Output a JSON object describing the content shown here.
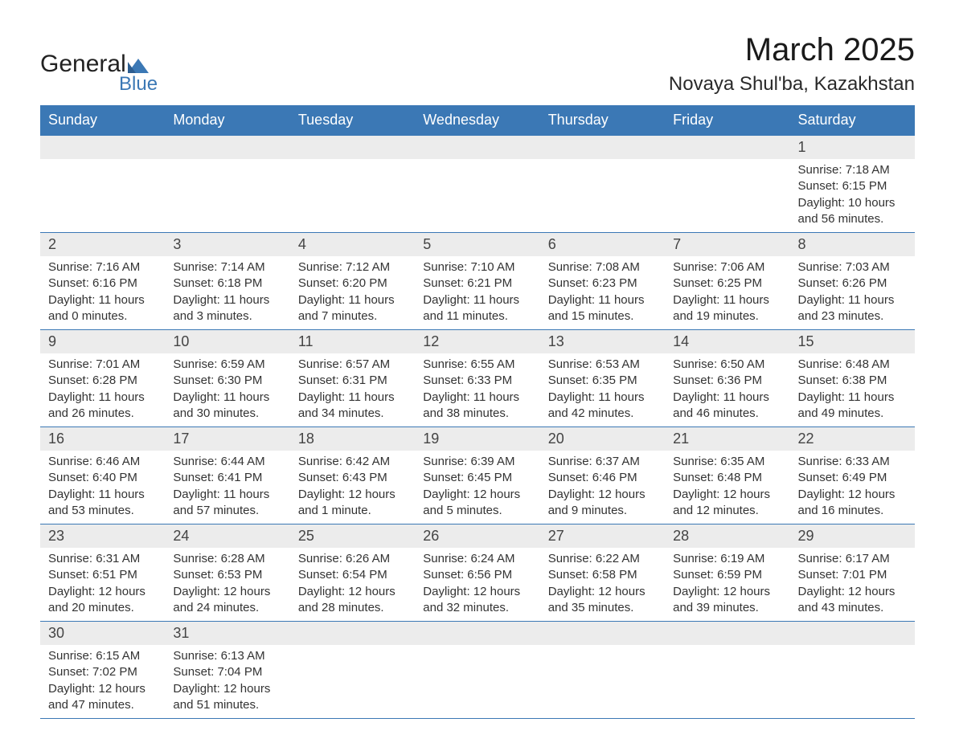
{
  "colors": {
    "header_bg": "#3b78b5",
    "header_text": "#ffffff",
    "rule": "#3b78b5",
    "daynum_bg": "#ececec",
    "text": "#333333",
    "brand_blue": "#3b78b5",
    "background": "#ffffff"
  },
  "logo": {
    "word1": "General",
    "word2": "Blue"
  },
  "header": {
    "title": "March 2025",
    "location": "Novaya Shul'ba, Kazakhstan"
  },
  "typography": {
    "title_fontsize": 40,
    "location_fontsize": 24,
    "weekday_fontsize": 18,
    "daynum_fontsize": 18,
    "body_fontsize": 15
  },
  "weekdays": [
    "Sunday",
    "Monday",
    "Tuesday",
    "Wednesday",
    "Thursday",
    "Friday",
    "Saturday"
  ],
  "weeks": [
    [
      {
        "empty": true
      },
      {
        "empty": true
      },
      {
        "empty": true
      },
      {
        "empty": true
      },
      {
        "empty": true
      },
      {
        "empty": true
      },
      {
        "day": "1",
        "sunrise": "Sunrise: 7:18 AM",
        "sunset": "Sunset: 6:15 PM",
        "daylight1": "Daylight: 10 hours",
        "daylight2": "and 56 minutes."
      }
    ],
    [
      {
        "day": "2",
        "sunrise": "Sunrise: 7:16 AM",
        "sunset": "Sunset: 6:16 PM",
        "daylight1": "Daylight: 11 hours",
        "daylight2": "and 0 minutes."
      },
      {
        "day": "3",
        "sunrise": "Sunrise: 7:14 AM",
        "sunset": "Sunset: 6:18 PM",
        "daylight1": "Daylight: 11 hours",
        "daylight2": "and 3 minutes."
      },
      {
        "day": "4",
        "sunrise": "Sunrise: 7:12 AM",
        "sunset": "Sunset: 6:20 PM",
        "daylight1": "Daylight: 11 hours",
        "daylight2": "and 7 minutes."
      },
      {
        "day": "5",
        "sunrise": "Sunrise: 7:10 AM",
        "sunset": "Sunset: 6:21 PM",
        "daylight1": "Daylight: 11 hours",
        "daylight2": "and 11 minutes."
      },
      {
        "day": "6",
        "sunrise": "Sunrise: 7:08 AM",
        "sunset": "Sunset: 6:23 PM",
        "daylight1": "Daylight: 11 hours",
        "daylight2": "and 15 minutes."
      },
      {
        "day": "7",
        "sunrise": "Sunrise: 7:06 AM",
        "sunset": "Sunset: 6:25 PM",
        "daylight1": "Daylight: 11 hours",
        "daylight2": "and 19 minutes."
      },
      {
        "day": "8",
        "sunrise": "Sunrise: 7:03 AM",
        "sunset": "Sunset: 6:26 PM",
        "daylight1": "Daylight: 11 hours",
        "daylight2": "and 23 minutes."
      }
    ],
    [
      {
        "day": "9",
        "sunrise": "Sunrise: 7:01 AM",
        "sunset": "Sunset: 6:28 PM",
        "daylight1": "Daylight: 11 hours",
        "daylight2": "and 26 minutes."
      },
      {
        "day": "10",
        "sunrise": "Sunrise: 6:59 AM",
        "sunset": "Sunset: 6:30 PM",
        "daylight1": "Daylight: 11 hours",
        "daylight2": "and 30 minutes."
      },
      {
        "day": "11",
        "sunrise": "Sunrise: 6:57 AM",
        "sunset": "Sunset: 6:31 PM",
        "daylight1": "Daylight: 11 hours",
        "daylight2": "and 34 minutes."
      },
      {
        "day": "12",
        "sunrise": "Sunrise: 6:55 AM",
        "sunset": "Sunset: 6:33 PM",
        "daylight1": "Daylight: 11 hours",
        "daylight2": "and 38 minutes."
      },
      {
        "day": "13",
        "sunrise": "Sunrise: 6:53 AM",
        "sunset": "Sunset: 6:35 PM",
        "daylight1": "Daylight: 11 hours",
        "daylight2": "and 42 minutes."
      },
      {
        "day": "14",
        "sunrise": "Sunrise: 6:50 AM",
        "sunset": "Sunset: 6:36 PM",
        "daylight1": "Daylight: 11 hours",
        "daylight2": "and 46 minutes."
      },
      {
        "day": "15",
        "sunrise": "Sunrise: 6:48 AM",
        "sunset": "Sunset: 6:38 PM",
        "daylight1": "Daylight: 11 hours",
        "daylight2": "and 49 minutes."
      }
    ],
    [
      {
        "day": "16",
        "sunrise": "Sunrise: 6:46 AM",
        "sunset": "Sunset: 6:40 PM",
        "daylight1": "Daylight: 11 hours",
        "daylight2": "and 53 minutes."
      },
      {
        "day": "17",
        "sunrise": "Sunrise: 6:44 AM",
        "sunset": "Sunset: 6:41 PM",
        "daylight1": "Daylight: 11 hours",
        "daylight2": "and 57 minutes."
      },
      {
        "day": "18",
        "sunrise": "Sunrise: 6:42 AM",
        "sunset": "Sunset: 6:43 PM",
        "daylight1": "Daylight: 12 hours",
        "daylight2": "and 1 minute."
      },
      {
        "day": "19",
        "sunrise": "Sunrise: 6:39 AM",
        "sunset": "Sunset: 6:45 PM",
        "daylight1": "Daylight: 12 hours",
        "daylight2": "and 5 minutes."
      },
      {
        "day": "20",
        "sunrise": "Sunrise: 6:37 AM",
        "sunset": "Sunset: 6:46 PM",
        "daylight1": "Daylight: 12 hours",
        "daylight2": "and 9 minutes."
      },
      {
        "day": "21",
        "sunrise": "Sunrise: 6:35 AM",
        "sunset": "Sunset: 6:48 PM",
        "daylight1": "Daylight: 12 hours",
        "daylight2": "and 12 minutes."
      },
      {
        "day": "22",
        "sunrise": "Sunrise: 6:33 AM",
        "sunset": "Sunset: 6:49 PM",
        "daylight1": "Daylight: 12 hours",
        "daylight2": "and 16 minutes."
      }
    ],
    [
      {
        "day": "23",
        "sunrise": "Sunrise: 6:31 AM",
        "sunset": "Sunset: 6:51 PM",
        "daylight1": "Daylight: 12 hours",
        "daylight2": "and 20 minutes."
      },
      {
        "day": "24",
        "sunrise": "Sunrise: 6:28 AM",
        "sunset": "Sunset: 6:53 PM",
        "daylight1": "Daylight: 12 hours",
        "daylight2": "and 24 minutes."
      },
      {
        "day": "25",
        "sunrise": "Sunrise: 6:26 AM",
        "sunset": "Sunset: 6:54 PM",
        "daylight1": "Daylight: 12 hours",
        "daylight2": "and 28 minutes."
      },
      {
        "day": "26",
        "sunrise": "Sunrise: 6:24 AM",
        "sunset": "Sunset: 6:56 PM",
        "daylight1": "Daylight: 12 hours",
        "daylight2": "and 32 minutes."
      },
      {
        "day": "27",
        "sunrise": "Sunrise: 6:22 AM",
        "sunset": "Sunset: 6:58 PM",
        "daylight1": "Daylight: 12 hours",
        "daylight2": "and 35 minutes."
      },
      {
        "day": "28",
        "sunrise": "Sunrise: 6:19 AM",
        "sunset": "Sunset: 6:59 PM",
        "daylight1": "Daylight: 12 hours",
        "daylight2": "and 39 minutes."
      },
      {
        "day": "29",
        "sunrise": "Sunrise: 6:17 AM",
        "sunset": "Sunset: 7:01 PM",
        "daylight1": "Daylight: 12 hours",
        "daylight2": "and 43 minutes."
      }
    ],
    [
      {
        "day": "30",
        "sunrise": "Sunrise: 6:15 AM",
        "sunset": "Sunset: 7:02 PM",
        "daylight1": "Daylight: 12 hours",
        "daylight2": "and 47 minutes."
      },
      {
        "day": "31",
        "sunrise": "Sunrise: 6:13 AM",
        "sunset": "Sunset: 7:04 PM",
        "daylight1": "Daylight: 12 hours",
        "daylight2": "and 51 minutes."
      },
      {
        "empty": true
      },
      {
        "empty": true
      },
      {
        "empty": true
      },
      {
        "empty": true
      },
      {
        "empty": true
      }
    ]
  ]
}
